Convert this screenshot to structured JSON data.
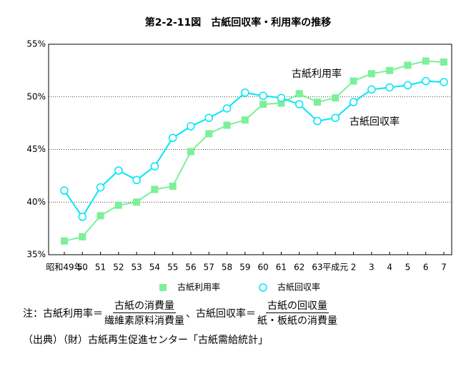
{
  "chart_data": {
    "type": "line",
    "title": "第2-2-11図　古紙回収率・利用率の推移",
    "categories": [
      "昭和49年",
      "50",
      "51",
      "52",
      "53",
      "54",
      "55",
      "56",
      "57",
      "58",
      "59",
      "60",
      "61",
      "62",
      "63",
      "平成元",
      "2",
      "3",
      "4",
      "5",
      "6",
      "7"
    ],
    "series": [
      {
        "name": "古紙利用率",
        "color": "#7cf09a",
        "marker": "square",
        "values": [
          36.3,
          36.7,
          38.7,
          39.7,
          40.0,
          41.2,
          41.5,
          44.8,
          46.5,
          47.3,
          47.8,
          49.3,
          49.4,
          50.3,
          49.5,
          49.9,
          51.5,
          52.2,
          52.5,
          53.0,
          53.4,
          53.3
        ]
      },
      {
        "name": "古紙回収率",
        "color": "#00e5f5",
        "marker": "circle",
        "values": [
          41.1,
          38.6,
          41.4,
          43.0,
          42.1,
          43.4,
          46.1,
          47.2,
          48.0,
          48.9,
          50.4,
          50.1,
          49.9,
          49.3,
          47.7,
          48.0,
          49.5,
          50.7,
          50.9,
          51.1,
          51.5,
          51.4
        ]
      }
    ],
    "ylim": [
      35,
      55
    ],
    "yticks": [
      {
        "value": 35,
        "label": "35%"
      },
      {
        "value": 40,
        "label": "40%"
      },
      {
        "value": 45,
        "label": "45%"
      },
      {
        "value": 50,
        "label": "50%"
      },
      {
        "value": 55,
        "label": "55%"
      }
    ],
    "grid": true,
    "annotations": [
      "古紙利用率",
      "古紙回収率"
    ],
    "note": {
      "prefix": "注：古紙利用率＝",
      "f1_num": "古紙の消費量",
      "f1_den": "繊維素原料消費量",
      "mid": "、古紙回収率＝",
      "f2_num": "古紙の回収量",
      "f2_den": "紙・板紙の消費量"
    },
    "source": "（出典）（財）古紙再生促進センター「古紙需給統計」"
  }
}
